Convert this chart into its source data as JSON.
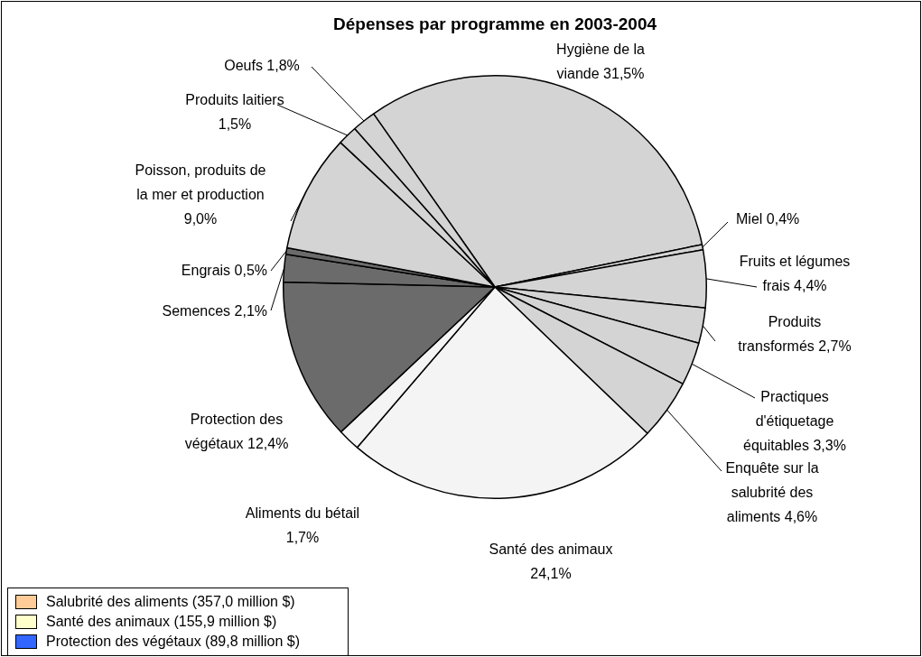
{
  "chart_data": {
    "type": "pie",
    "title": "Dépenses par programme en 2003-2004",
    "categories": [
      "Hygiène de la viande",
      "Miel",
      "Fruits et légumes frais",
      "Produits transformés",
      "Practiques d'étiquetage équitables",
      "Enquête sur la salubrité des aliments",
      "Santé des animaux",
      "Aliments du bétail",
      "Protection des végétaux",
      "Semences",
      "Engrais",
      "Poisson, produits de la mer et production",
      "Produits laitiers",
      "Oeufs"
    ],
    "values": [
      31.5,
      0.4,
      4.4,
      2.7,
      3.3,
      4.6,
      24.1,
      1.7,
      12.4,
      2.1,
      0.5,
      9.0,
      1.5,
      1.8
    ],
    "colors": [
      "#d4d4d4",
      "#d4d4d4",
      "#d4d4d4",
      "#d4d4d4",
      "#d4d4d4",
      "#d4d4d4",
      "#f4f4f4",
      "#f4f4f4",
      "#6b6b6b",
      "#6b6b6b",
      "#6b6b6b",
      "#d4d4d4",
      "#d4d4d4",
      "#d4d4d4"
    ],
    "value_labels": [
      "31,5%",
      "0,4%",
      "4,4%",
      "2,7%",
      "3,3%",
      "4,6%",
      "24,1%",
      "1,7%",
      "12,4%",
      "2,1%",
      "0,5%",
      "9,0%",
      "1,5%",
      "1,8%"
    ],
    "annotations": [
      "Salubrité des aliments (357,0 million $)",
      "Santé des animaux (155,9 million $)",
      "Protection des végétaux (89,8 million $)"
    ]
  }
}
